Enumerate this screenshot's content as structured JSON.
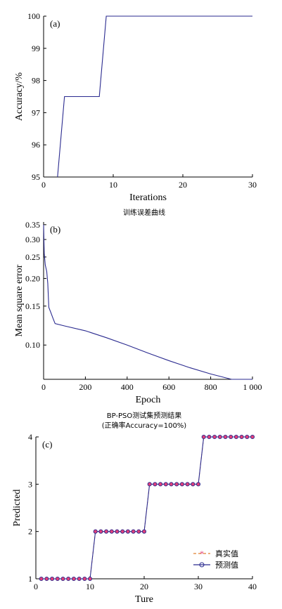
{
  "colors": {
    "line": "#2a2a8f",
    "marker_face": "#e0407a",
    "marker_edge": "#2a2a8f",
    "legend_dash": "#e08030",
    "axis": "#000000"
  },
  "chart_data": [
    {
      "type": "line",
      "panel_label": "(a)",
      "title": "",
      "xlabel": "Iterations",
      "ylabel": "Accuracy/%",
      "xlim": [
        0,
        30
      ],
      "ylim": [
        95,
        100
      ],
      "xticks": [
        0,
        10,
        20,
        30
      ],
      "xtick_labels": [
        "0",
        "10",
        "20",
        "30"
      ],
      "yticks": [
        95,
        96,
        97,
        98,
        99,
        100
      ],
      "ytick_labels": [
        "95",
        "96",
        "97",
        "98",
        "99",
        "100"
      ],
      "series": [
        {
          "x": [
            2,
            3,
            8,
            9,
            30
          ],
          "y": [
            95,
            97.5,
            97.5,
            100,
            100
          ]
        }
      ],
      "grid": false
    },
    {
      "type": "line",
      "panel_label": "(b)",
      "title": "训练误差曲线",
      "xlabel": "Epoch",
      "ylabel": "Mean square error",
      "xlim": [
        0,
        1000
      ],
      "ylim": [
        0.07,
        0.36
      ],
      "yscale": "log",
      "xticks": [
        0,
        200,
        400,
        600,
        800,
        1000
      ],
      "xtick_labels": [
        "0",
        "200",
        "400",
        "600",
        "800",
        "1 000"
      ],
      "yticks": [
        0.35,
        0.3,
        0.25,
        0.2,
        0.15,
        0.1
      ],
      "ytick_labels": [
        "0.35",
        "0.30",
        "0.25",
        "0.20",
        "0.15",
        "0.10"
      ],
      "series": [
        {
          "x": [
            0,
            3,
            8,
            15,
            20,
            25,
            35,
            45,
            55,
            100,
            200,
            300,
            400,
            500,
            600,
            700,
            800,
            900,
            1000
          ],
          "y": [
            0.35,
            0.26,
            0.23,
            0.215,
            0.19,
            0.148,
            0.14,
            0.132,
            0.125,
            0.122,
            0.116,
            0.108,
            0.1,
            0.092,
            0.085,
            0.079,
            0.074,
            0.069,
            0.065
          ]
        }
      ],
      "grid": false
    },
    {
      "type": "line",
      "panel_label": "(c)",
      "title": "BP-PSO测试集预测结果",
      "subtitle": "(正确率Accuracy=100%)",
      "xlabel": "Ture",
      "ylabel": "Predicted",
      "xlim": [
        0,
        40
      ],
      "ylim": [
        1,
        4
      ],
      "xticks": [
        0,
        10,
        20,
        30,
        40
      ],
      "xtick_labels": [
        "0",
        "10",
        "20",
        "30",
        "40"
      ],
      "yticks": [
        1,
        2,
        3,
        4
      ],
      "ytick_labels": [
        "1",
        "2",
        "3",
        "4"
      ],
      "series": [
        {
          "name": "真实值",
          "marker": "*",
          "style": "dashed",
          "x": [
            1,
            2,
            3,
            4,
            5,
            6,
            7,
            8,
            9,
            10,
            11,
            12,
            13,
            14,
            15,
            16,
            17,
            18,
            19,
            20,
            21,
            22,
            23,
            24,
            25,
            26,
            27,
            28,
            29,
            30,
            31,
            32,
            33,
            34,
            35,
            36,
            37,
            38,
            39,
            40
          ],
          "y": [
            1,
            1,
            1,
            1,
            1,
            1,
            1,
            1,
            1,
            1,
            2,
            2,
            2,
            2,
            2,
            2,
            2,
            2,
            2,
            2,
            3,
            3,
            3,
            3,
            3,
            3,
            3,
            3,
            3,
            3,
            4,
            4,
            4,
            4,
            4,
            4,
            4,
            4,
            4,
            4
          ]
        },
        {
          "name": "预测值",
          "marker": "o",
          "style": "solid",
          "x": [
            1,
            2,
            3,
            4,
            5,
            6,
            7,
            8,
            9,
            10,
            11,
            12,
            13,
            14,
            15,
            16,
            17,
            18,
            19,
            20,
            21,
            22,
            23,
            24,
            25,
            26,
            27,
            28,
            29,
            30,
            31,
            32,
            33,
            34,
            35,
            36,
            37,
            38,
            39,
            40
          ],
          "y": [
            1,
            1,
            1,
            1,
            1,
            1,
            1,
            1,
            1,
            1,
            2,
            2,
            2,
            2,
            2,
            2,
            2,
            2,
            2,
            2,
            3,
            3,
            3,
            3,
            3,
            3,
            3,
            3,
            3,
            3,
            4,
            4,
            4,
            4,
            4,
            4,
            4,
            4,
            4,
            4
          ]
        }
      ],
      "legend": "bottom-right",
      "grid": false
    }
  ]
}
